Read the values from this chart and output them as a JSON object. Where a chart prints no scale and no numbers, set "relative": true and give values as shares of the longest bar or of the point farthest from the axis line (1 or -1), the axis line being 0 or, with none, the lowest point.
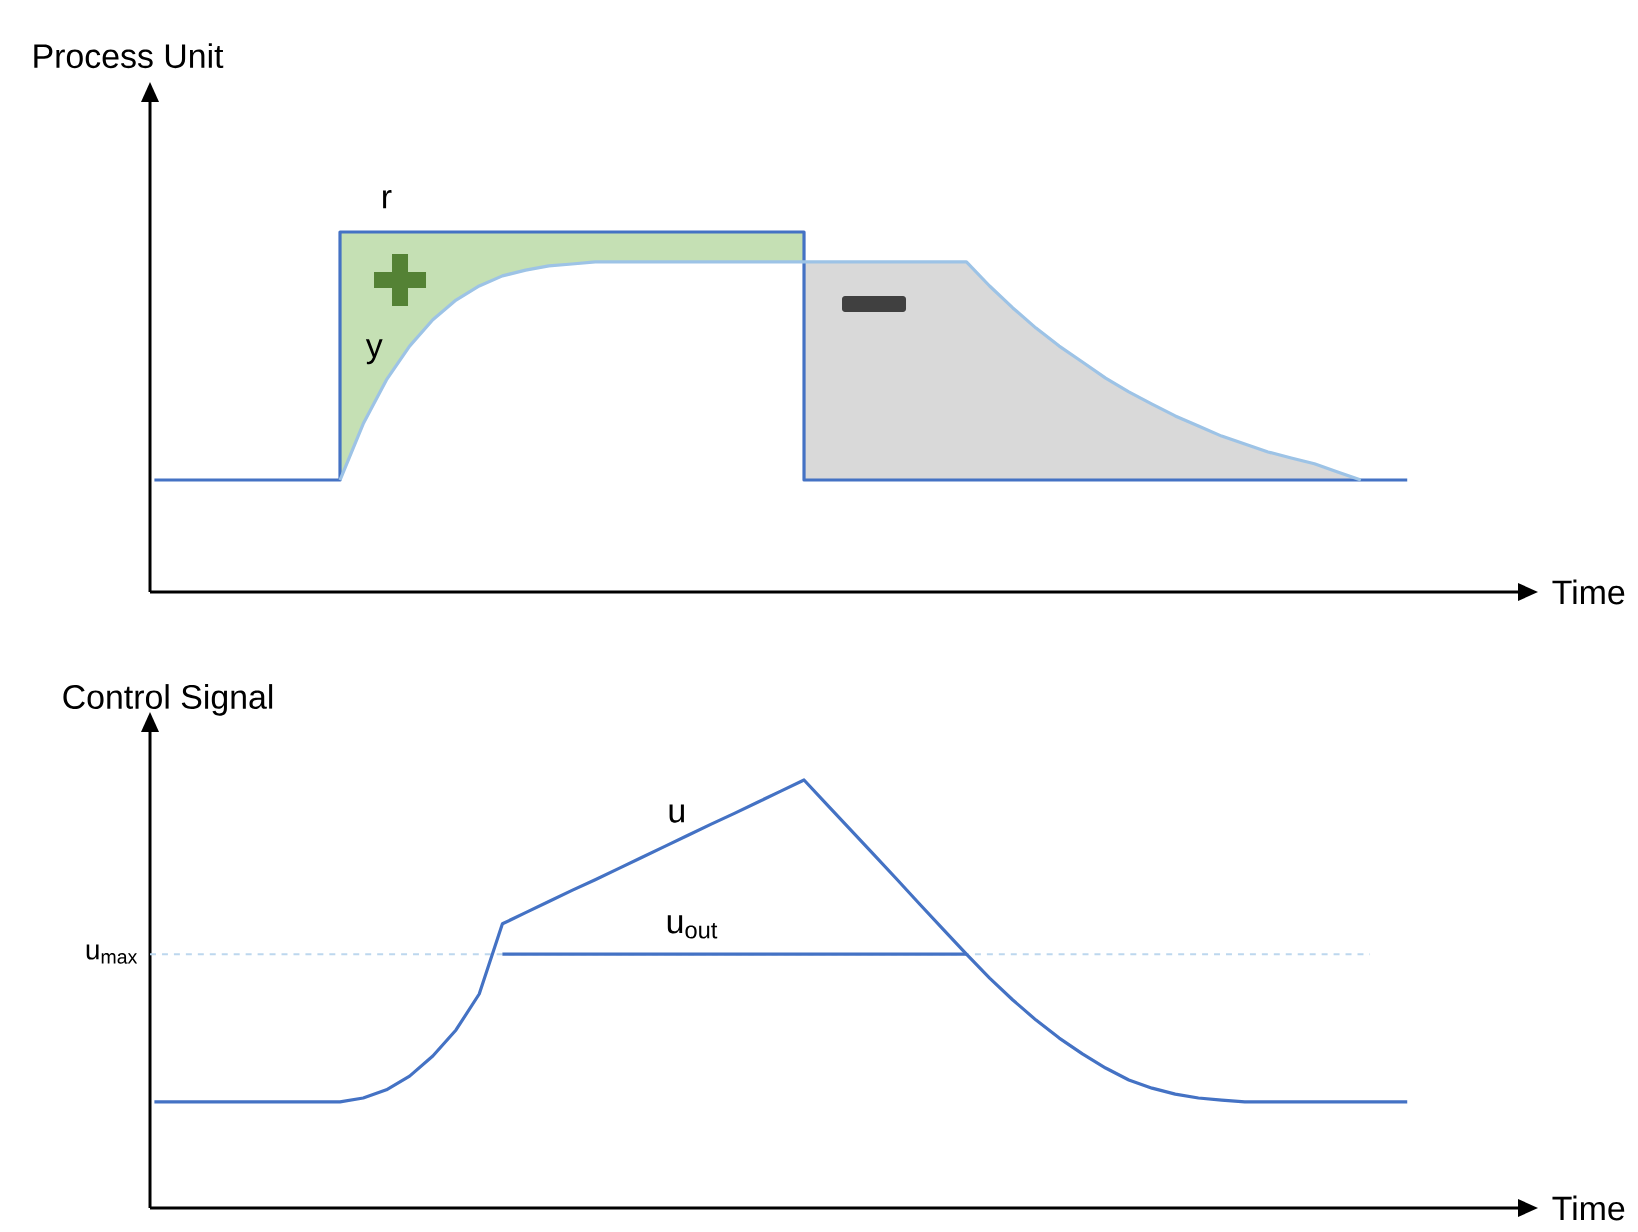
{
  "chart_data": [
    {
      "type": "line",
      "relative": true,
      "tick_labels": false,
      "ylabel": "Process Unit",
      "xlabel": "Time",
      "categories": [
        null,
        null,
        null,
        null,
        null,
        null,
        null,
        null,
        null,
        null,
        null,
        null,
        null,
        null,
        null,
        null,
        null,
        null,
        null,
        null,
        null,
        null,
        null,
        null,
        null,
        null,
        null,
        null,
        null,
        null,
        null,
        null,
        null,
        null,
        null,
        null,
        null,
        null,
        null,
        null,
        null,
        null,
        null,
        null,
        null,
        null,
        null,
        null,
        null,
        null,
        null,
        null,
        null,
        null,
        null
      ],
      "series": [
        {
          "name": "r",
          "type": "step",
          "color": "#4472c4",
          "values": [
            0.311,
            0.311,
            0.311,
            0.311,
            0.311,
            0.311,
            0.311,
            0.311,
            1,
            1,
            1,
            1,
            1,
            1,
            1,
            1,
            1,
            1,
            1,
            1,
            1,
            1,
            1,
            1,
            1,
            1,
            1,
            1,
            0.311,
            0.311,
            0.311,
            0.311,
            0.311,
            0.311,
            0.311,
            0.311,
            0.311,
            0.311,
            0.311,
            0.311,
            0.311,
            0.311,
            0.311,
            0.311,
            0.311,
            0.311,
            0.311,
            0.311,
            0.311,
            0.311,
            0.311,
            0.311,
            0.311,
            0.311,
            0.311
          ],
          "lower": [
            null,
            null,
            null,
            null,
            null,
            null,
            null,
            null,
            0.311,
            0.467,
            0.589,
            0.683,
            0.756,
            0.811,
            0.85,
            0.878,
            0.894,
            0.906,
            0.911,
            0.917,
            0.917,
            0.917,
            0.917,
            0.917,
            0.917,
            0.917,
            0.917,
            0.917,
            0.917,
            null,
            null,
            null,
            null,
            null,
            null,
            null,
            null,
            null,
            null,
            null,
            null,
            null,
            null,
            null,
            null,
            null,
            null,
            null,
            null,
            null,
            null,
            null,
            null,
            null,
            null
          ],
          "upper": [
            null,
            null,
            null,
            null,
            null,
            null,
            null,
            null,
            1,
            1,
            1,
            1,
            1,
            1,
            1,
            1,
            1,
            1,
            1,
            1,
            1,
            1,
            1,
            1,
            1,
            1,
            1,
            1,
            1,
            null,
            null,
            null,
            null,
            null,
            null,
            null,
            null,
            null,
            null,
            null,
            null,
            null,
            null,
            null,
            null,
            null,
            null,
            null,
            null,
            null,
            null,
            null,
            null,
            null,
            null
          ]
        },
        {
          "name": "y",
          "type": "line",
          "color": "#9dc3e6",
          "values": [
            null,
            null,
            null,
            null,
            null,
            null,
            null,
            null,
            0.311,
            0.467,
            0.589,
            0.683,
            0.756,
            0.811,
            0.85,
            0.878,
            0.894,
            0.906,
            0.911,
            0.917,
            0.917,
            0.917,
            0.917,
            0.917,
            0.917,
            0.917,
            0.917,
            0.917,
            0.917,
            0.917,
            0.917,
            0.917,
            0.917,
            0.917,
            0.917,
            0.917,
            0.85,
            0.789,
            0.733,
            0.683,
            0.639,
            0.594,
            0.556,
            0.522,
            0.489,
            0.461,
            0.433,
            0.411,
            0.389,
            0.372,
            0.356,
            0.333,
            0.311,
            null,
            null
          ],
          "lower": [
            null,
            null,
            null,
            null,
            null,
            null,
            null,
            null,
            null,
            null,
            null,
            null,
            null,
            null,
            null,
            null,
            null,
            null,
            null,
            null,
            null,
            null,
            null,
            null,
            null,
            null,
            null,
            null,
            0.311,
            0.311,
            0.311,
            0.311,
            0.311,
            0.311,
            0.311,
            0.311,
            0.311,
            0.311,
            0.311,
            0.311,
            0.311,
            0.311,
            0.311,
            0.311,
            0.311,
            0.311,
            0.311,
            0.311,
            0.311,
            0.311,
            0.311,
            0.311,
            0.311,
            null,
            null
          ],
          "upper": [
            null,
            null,
            null,
            null,
            null,
            null,
            null,
            null,
            null,
            null,
            null,
            null,
            null,
            null,
            null,
            null,
            null,
            null,
            null,
            null,
            null,
            null,
            null,
            null,
            null,
            null,
            null,
            null,
            0.917,
            0.917,
            0.917,
            0.917,
            0.917,
            0.917,
            0.917,
            0.917,
            0.85,
            0.789,
            0.733,
            0.683,
            0.639,
            0.594,
            0.556,
            0.522,
            0.489,
            0.461,
            0.433,
            0.411,
            0.389,
            0.372,
            0.356,
            0.333,
            0.311,
            null,
            null
          ]
        }
      ]
    },
    {
      "type": "line",
      "relative": true,
      "tick_labels": false,
      "ylabel": "Control Signal",
      "xlabel": "Time",
      "categories": [
        null,
        null,
        null,
        null,
        null,
        null,
        null,
        null,
        null,
        null,
        null,
        null,
        null,
        null,
        null,
        null,
        null,
        null,
        null,
        null,
        null,
        null,
        null,
        null,
        null,
        null,
        null,
        null,
        null,
        null,
        null,
        null,
        null,
        null,
        null,
        null,
        null,
        null,
        null,
        null,
        null,
        null,
        null,
        null,
        null,
        null,
        null,
        null,
        null,
        null,
        null,
        null,
        null,
        null,
        null
      ],
      "series": [
        {
          "name": "u",
          "color": "#4472c4",
          "values": [
            0.248,
            0.248,
            0.248,
            0.248,
            0.248,
            0.248,
            0.248,
            0.248,
            0.248,
            0.257,
            0.276,
            0.308,
            0.355,
            0.416,
            0.5,
            0.664,
            0.69,
            0.716,
            0.742,
            0.767,
            0.793,
            0.819,
            0.845,
            0.871,
            0.897,
            0.922,
            0.948,
            0.974,
            1.0,
            0.942,
            0.884,
            0.826,
            0.768,
            0.709,
            0.651,
            0.593,
            0.537,
            0.486,
            0.439,
            0.397,
            0.36,
            0.327,
            0.299,
            0.28,
            0.266,
            0.257,
            0.252,
            0.248,
            0.248,
            0.248,
            0.248,
            0.248,
            0.248,
            0.248,
            0.248
          ]
        },
        {
          "name": "u$_{out}$",
          "color": "#4472c4",
          "values": [
            null,
            null,
            null,
            null,
            null,
            null,
            null,
            null,
            null,
            null,
            null,
            null,
            null,
            null,
            null,
            0.593,
            0.593,
            0.593,
            0.593,
            0.593,
            0.593,
            0.593,
            0.593,
            0.593,
            0.593,
            0.593,
            0.593,
            0.593,
            0.593,
            0.593,
            0.593,
            0.593,
            0.593,
            0.593,
            0.593,
            0.593,
            null,
            null,
            null,
            null,
            null,
            null,
            null,
            null,
            null,
            null,
            null,
            null,
            null,
            null,
            null,
            null,
            null,
            null,
            null
          ]
        }
      ],
      "ref_lines": [
        {
          "axis": "y",
          "value": 0.593,
          "label": "u$_{max}$",
          "color": "#bdd7ee",
          "line_style": "dashed"
        }
      ]
    }
  ]
}
